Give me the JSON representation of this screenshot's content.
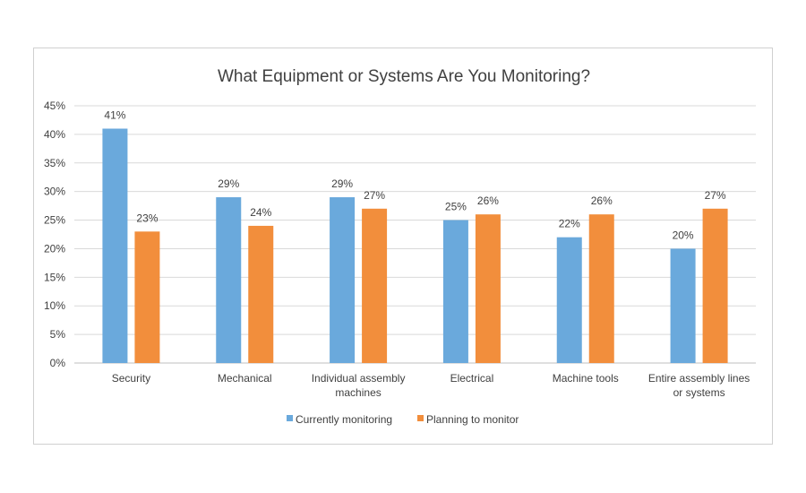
{
  "chart_data": {
    "type": "bar",
    "title": "What Equipment or Systems Are You Monitoring?",
    "categories": [
      [
        "Security"
      ],
      [
        "Mechanical"
      ],
      [
        "Individual assembly",
        "machines"
      ],
      [
        "Electrical"
      ],
      [
        "Machine tools"
      ],
      [
        "Entire assembly lines",
        "or systems"
      ]
    ],
    "series": [
      {
        "name": "Currently monitoring",
        "color": "#6aa9dc",
        "values": [
          41,
          29,
          29,
          25,
          22,
          20
        ]
      },
      {
        "name": "Planning to monitor",
        "color": "#f28e3c",
        "values": [
          23,
          24,
          27,
          26,
          26,
          27
        ]
      }
    ],
    "ylim": [
      0,
      45
    ],
    "yticks": [
      0,
      5,
      10,
      15,
      20,
      25,
      30,
      35,
      40,
      45
    ],
    "value_suffix": "%",
    "grid": true,
    "legend_position": "bottom"
  }
}
